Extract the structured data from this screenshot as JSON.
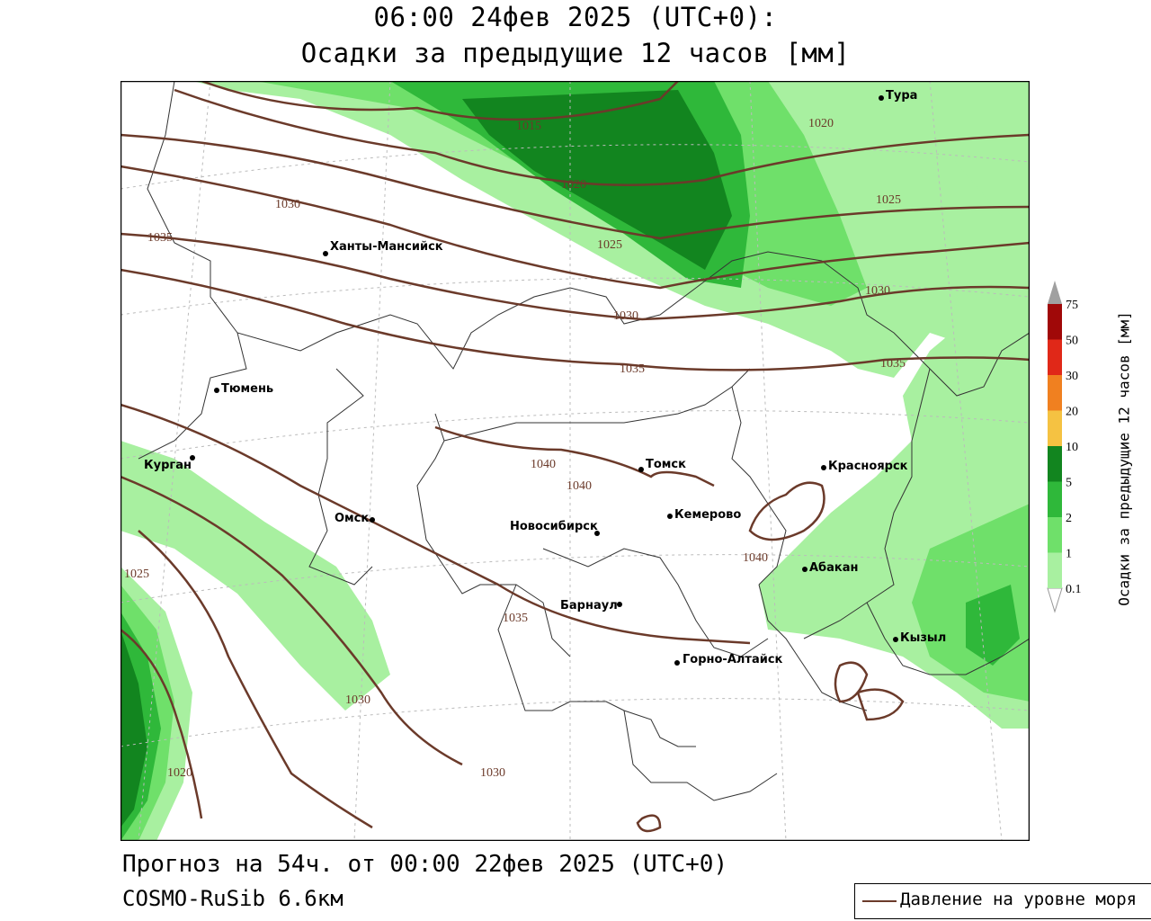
{
  "header": {
    "title_line1": "06:00 24фев 2025 (UTC+0):",
    "title_line2": "Осадки за предыдущие 12 часов [мм]"
  },
  "footer": {
    "forecast": "Прогноз на 54ч. от 00:00 22фев 2025 (UTC+0)",
    "model": "COSMO-RuSib 6.6км"
  },
  "line_legend": {
    "label": "Давление на уровне моря"
  },
  "colorbar": {
    "title": "Осадки за предыдущие 12 часов [мм]",
    "levels": [
      "0.1",
      "1",
      "2",
      "5",
      "10",
      "20",
      "30",
      "50",
      "75"
    ],
    "colors": [
      "#ffffff",
      "#a8f0a0",
      "#6fe06a",
      "#2fb83a",
      "#12851f",
      "#f5c242",
      "#f08020",
      "#e02818",
      "#a00808",
      "#a0a0a0"
    ]
  },
  "cities": [
    {
      "name": "Тура"
    },
    {
      "name": "Ханты-Мансийск"
    },
    {
      "name": "Тюмень"
    },
    {
      "name": "Курган"
    },
    {
      "name": "Омск"
    },
    {
      "name": "Новосибирск"
    },
    {
      "name": "Томск"
    },
    {
      "name": "Кемерово"
    },
    {
      "name": "Красноярск"
    },
    {
      "name": "Абакан"
    },
    {
      "name": "Барнаул"
    },
    {
      "name": "Горно-Алтайск"
    },
    {
      "name": "Кызыл"
    }
  ],
  "isobar_labels": [
    "1015",
    "1020",
    "1020",
    "1025",
    "1025",
    "1030",
    "1030",
    "1030",
    "1035",
    "1035",
    "1035",
    "1040",
    "1040",
    "1040",
    "1025",
    "1030",
    "1020",
    "1030",
    "1035"
  ],
  "map_colors": {
    "isobar": "#6b3a2a",
    "border": "#333333",
    "grid": "#bbbbbb"
  }
}
